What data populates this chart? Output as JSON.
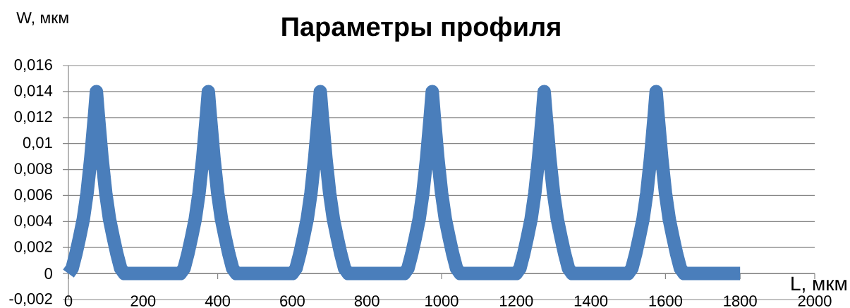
{
  "chart_data": {
    "type": "line",
    "title": "Параметры профиля",
    "xlabel": "L, мкм",
    "ylabel": "W, мкм",
    "x": [
      0,
      10,
      20,
      30,
      40,
      50,
      60,
      70,
      75,
      80,
      90,
      100,
      110,
      120,
      130,
      140,
      150,
      300,
      310,
      320,
      330,
      340,
      350,
      360,
      370,
      375,
      380,
      390,
      400,
      410,
      420,
      430,
      440,
      450,
      600,
      610,
      620,
      630,
      640,
      650,
      660,
      670,
      675,
      680,
      690,
      700,
      710,
      720,
      730,
      740,
      750,
      900,
      910,
      920,
      930,
      940,
      950,
      960,
      970,
      975,
      980,
      990,
      1000,
      1010,
      1020,
      1030,
      1040,
      1050,
      1200,
      1210,
      1220,
      1230,
      1240,
      1250,
      1260,
      1270,
      1275,
      1280,
      1290,
      1300,
      1310,
      1320,
      1330,
      1340,
      1350,
      1500,
      1510,
      1520,
      1530,
      1540,
      1550,
      1560,
      1570,
      1575,
      1580,
      1590,
      1600,
      1610,
      1620,
      1630,
      1640,
      1650,
      1800
    ],
    "series": [
      {
        "color": "#4a7ebb",
        "values": [
          0,
          0.0004,
          0.0015,
          0.0028,
          0.0042,
          0.0062,
          0.0089,
          0.0122,
          0.014,
          0.0122,
          0.0089,
          0.0062,
          0.0042,
          0.0028,
          0.0015,
          0.0004,
          0,
          0,
          0.0004,
          0.0015,
          0.0028,
          0.0042,
          0.0062,
          0.0089,
          0.0122,
          0.014,
          0.0122,
          0.0089,
          0.0062,
          0.0042,
          0.0028,
          0.0015,
          0.0004,
          0,
          0,
          0.0004,
          0.0015,
          0.0028,
          0.0042,
          0.0062,
          0.0089,
          0.0122,
          0.014,
          0.0122,
          0.0089,
          0.0062,
          0.0042,
          0.0028,
          0.0015,
          0.0004,
          0,
          0,
          0.0004,
          0.0015,
          0.0028,
          0.0042,
          0.0062,
          0.0089,
          0.0122,
          0.014,
          0.0122,
          0.0089,
          0.0062,
          0.0042,
          0.0028,
          0.0015,
          0.0004,
          0,
          0,
          0.0004,
          0.0015,
          0.0028,
          0.0042,
          0.0062,
          0.0089,
          0.0122,
          0.014,
          0.0122,
          0.0089,
          0.0062,
          0.0042,
          0.0028,
          0.0015,
          0.0004,
          0,
          0,
          0.0004,
          0.0015,
          0.0028,
          0.0042,
          0.0062,
          0.0089,
          0.0122,
          0.014,
          0.0122,
          0.0089,
          0.0062,
          0.0042,
          0.0028,
          0.0015,
          0.0004,
          0,
          0
        ]
      }
    ],
    "xlim": [
      0,
      2000
    ],
    "xticks": [
      0,
      200,
      400,
      600,
      800,
      1000,
      1200,
      1400,
      1600,
      1800,
      2000
    ],
    "ylim": [
      -0.002,
      0.016
    ],
    "yticks": [
      {
        "value": -0.002,
        "label": "-0,002"
      },
      {
        "value": 0,
        "label": "0"
      },
      {
        "value": 0.002,
        "label": "0,002"
      },
      {
        "value": 0.004,
        "label": "0,004"
      },
      {
        "value": 0.006,
        "label": "0,006"
      },
      {
        "value": 0.008,
        "label": "0,008"
      },
      {
        "value": 0.01,
        "label": "0,01"
      },
      {
        "value": 0.012,
        "label": "0,012"
      },
      {
        "value": 0.014,
        "label": "0,014"
      },
      {
        "value": 0.016,
        "label": "0,016"
      }
    ],
    "grid": "y"
  }
}
